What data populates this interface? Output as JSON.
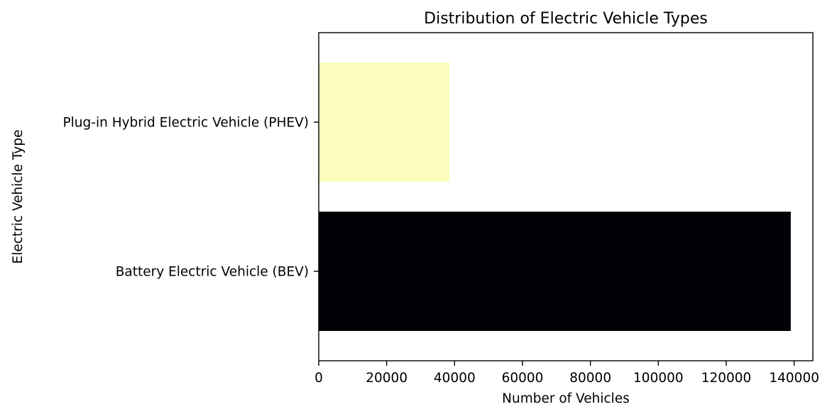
{
  "chart_data": {
    "type": "bar",
    "orientation": "horizontal",
    "title": "Distribution of Electric Vehicle Types",
    "xlabel": "Number of Vehicles",
    "ylabel": "Electric Vehicle Type",
    "categories": [
      "Battery Electric Vehicle (BEV)",
      "Plug-in Hybrid Electric Vehicle (PHEV)"
    ],
    "values": [
      139000,
      38500
    ],
    "bar_colors": [
      "#000004",
      "#fcfdbf"
    ],
    "xlim": [
      0,
      145500
    ],
    "xticks": [
      0,
      20000,
      40000,
      60000,
      80000,
      100000,
      120000,
      140000
    ],
    "xtick_labels": [
      "0",
      "20000",
      "40000",
      "60000",
      "80000",
      "100000",
      "120000",
      "140000"
    ],
    "grid": false,
    "legend": "none"
  }
}
